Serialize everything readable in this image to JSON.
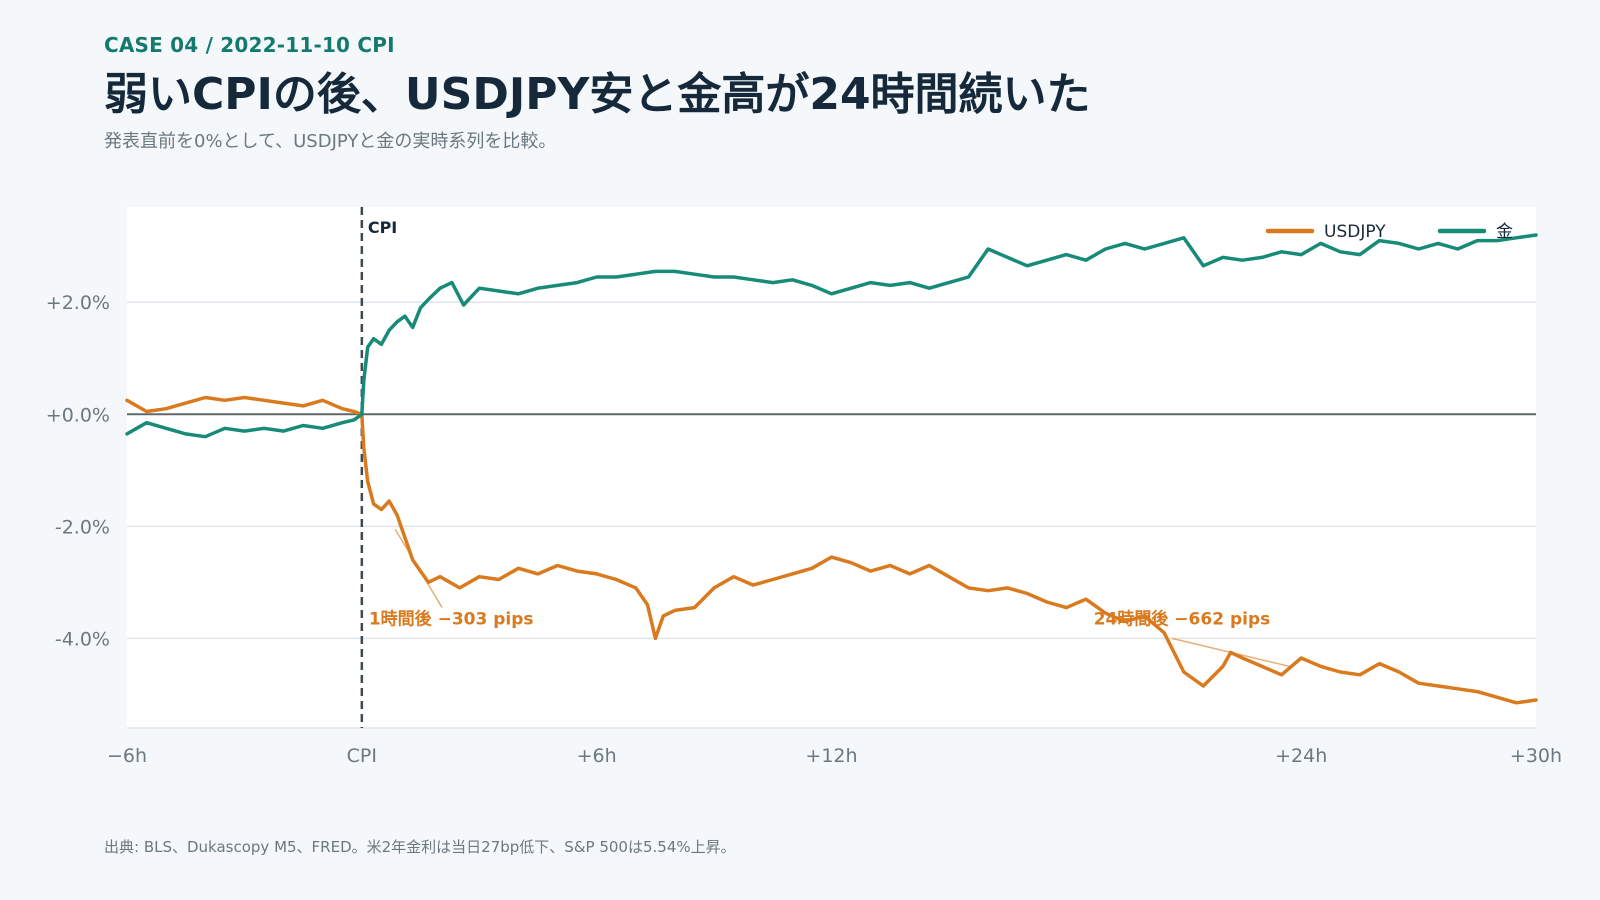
{
  "header": {
    "kicker": "CASE 04 / 2022-11-10 CPI",
    "title": "弱いCPIの後、USDJPY安と金高が24時間続いた",
    "subtitle": "発表直前を0%として、USDJPYと金の実時系列を比較。"
  },
  "footer": {
    "source": "出典: BLS、Dukascopy M5、FRED。米2年金利は当日27bp低下、S&P 500は5.54%上昇。"
  },
  "colors": {
    "usdjpy": "#d97a1e",
    "gold": "#178a78",
    "cpi_line": "#3d4a55",
    "zero_line": "#5e6a6a",
    "grid": "#dfe5ea",
    "plot_bg": "#ffffff"
  },
  "chart_data": {
    "type": "line",
    "xlabel": "",
    "ylabel": "",
    "xlim": [
      -6,
      30
    ],
    "ylim": [
      -5.6,
      3.7
    ],
    "x_ticks": [
      {
        "x": -6,
        "label": "−6h"
      },
      {
        "x": 0,
        "label": "CPI"
      },
      {
        "x": 6,
        "label": "+6h"
      },
      {
        "x": 12,
        "label": "+12h"
      },
      {
        "x": 24,
        "label": "+24h"
      },
      {
        "x": 30,
        "label": "+30h"
      }
    ],
    "y_ticks": [
      {
        "y": 2,
        "label": "+2.0%"
      },
      {
        "y": 0,
        "label": "+0.0%"
      },
      {
        "y": -2,
        "label": "-2.0%"
      },
      {
        "y": -4,
        "label": "-4.0%"
      }
    ],
    "event_marker": {
      "x": 0,
      "label": "CPI"
    },
    "legend": {
      "position": "top-right"
    },
    "series": [
      {
        "name": "USDJPY",
        "x": [
          -6,
          -5.5,
          -5,
          -4.5,
          -4,
          -3.5,
          -3,
          -2.5,
          -2,
          -1.5,
          -1,
          -0.5,
          -0.2,
          0,
          0.05,
          0.15,
          0.3,
          0.5,
          0.7,
          0.9,
          1.1,
          1.3,
          1.5,
          1.7,
          2,
          2.5,
          3,
          3.5,
          4,
          4.5,
          5,
          5.5,
          6,
          6.5,
          7,
          7.3,
          7.5,
          7.7,
          8,
          8.5,
          9,
          9.5,
          10,
          10.5,
          11,
          11.5,
          12,
          12.5,
          13,
          13.5,
          14,
          14.5,
          15,
          15.5,
          16,
          16.5,
          17,
          17.5,
          18,
          18.5,
          19,
          19.5,
          20,
          20.5,
          21,
          21.5,
          22,
          22.2,
          22.5,
          23,
          23.5,
          24,
          24.5,
          25,
          25.5,
          26,
          26.5,
          27,
          27.5,
          28,
          28.5,
          29,
          29.5,
          30
        ],
        "values": [
          0.25,
          0.05,
          0.1,
          0.2,
          0.3,
          0.25,
          0.3,
          0.25,
          0.2,
          0.15,
          0.25,
          0.1,
          0.05,
          0,
          -0.6,
          -1.2,
          -1.6,
          -1.7,
          -1.55,
          -1.8,
          -2.2,
          -2.6,
          -2.8,
          -3.0,
          -2.9,
          -3.1,
          -2.9,
          -2.95,
          -2.75,
          -2.85,
          -2.7,
          -2.8,
          -2.85,
          -2.95,
          -3.1,
          -3.4,
          -4.0,
          -3.6,
          -3.5,
          -3.45,
          -3.1,
          -2.9,
          -3.05,
          -2.95,
          -2.85,
          -2.75,
          -2.55,
          -2.65,
          -2.8,
          -2.7,
          -2.85,
          -2.7,
          -2.9,
          -3.1,
          -3.15,
          -3.1,
          -3.2,
          -3.35,
          -3.45,
          -3.3,
          -3.55,
          -3.7,
          -3.6,
          -3.9,
          -4.6,
          -4.85,
          -4.5,
          -4.25,
          -4.35,
          -4.5,
          -4.65,
          -4.35,
          -4.5,
          -4.6,
          -4.65,
          -4.45,
          -4.6,
          -4.8,
          -4.85,
          -4.9,
          -4.95,
          -5.05,
          -5.15,
          -5.1
        ]
      },
      {
        "name": "金",
        "x": [
          -6,
          -5.5,
          -5,
          -4.5,
          -4,
          -3.5,
          -3,
          -2.5,
          -2,
          -1.5,
          -1,
          -0.5,
          -0.2,
          0,
          0.05,
          0.15,
          0.3,
          0.5,
          0.7,
          0.9,
          1.1,
          1.3,
          1.5,
          1.7,
          2,
          2.3,
          2.6,
          3,
          3.5,
          4,
          4.5,
          5,
          5.5,
          6,
          6.5,
          7,
          7.5,
          8,
          8.5,
          9,
          9.5,
          10,
          10.5,
          11,
          11.5,
          12,
          12.5,
          13,
          13.5,
          14,
          14.5,
          15,
          15.5,
          16,
          16.5,
          17,
          17.5,
          18,
          18.5,
          19,
          19.5,
          20,
          20.5,
          21,
          21.5,
          22,
          22.5,
          23,
          23.5,
          24,
          24.5,
          25,
          25.5,
          26,
          26.5,
          27,
          27.5,
          28,
          28.5,
          29,
          29.5,
          30
        ],
        "values": [
          -0.35,
          -0.15,
          -0.25,
          -0.35,
          -0.4,
          -0.25,
          -0.3,
          -0.25,
          -0.3,
          -0.2,
          -0.25,
          -0.15,
          -0.1,
          0,
          0.6,
          1.2,
          1.35,
          1.25,
          1.5,
          1.65,
          1.75,
          1.55,
          1.9,
          2.05,
          2.25,
          2.35,
          1.95,
          2.25,
          2.2,
          2.15,
          2.25,
          2.3,
          2.35,
          2.45,
          2.45,
          2.5,
          2.55,
          2.55,
          2.5,
          2.45,
          2.45,
          2.4,
          2.35,
          2.4,
          2.3,
          2.15,
          2.25,
          2.35,
          2.3,
          2.35,
          2.25,
          2.35,
          2.45,
          2.95,
          2.8,
          2.65,
          2.75,
          2.85,
          2.75,
          2.95,
          3.05,
          2.95,
          3.05,
          3.15,
          2.65,
          2.8,
          2.75,
          2.8,
          2.9,
          2.85,
          3.05,
          2.9,
          2.85,
          3.1,
          3.05,
          2.95,
          3.05,
          2.95,
          3.1,
          3.1,
          3.15,
          3.2
        ]
      }
    ],
    "annotations": [
      {
        "text": "1時間後 −303 pips",
        "series": "USDJPY",
        "x": 1,
        "y": -2.4
      },
      {
        "text": "24時間後 −662 pips",
        "series": "USDJPY",
        "x": 24,
        "y": -4.5
      }
    ]
  }
}
